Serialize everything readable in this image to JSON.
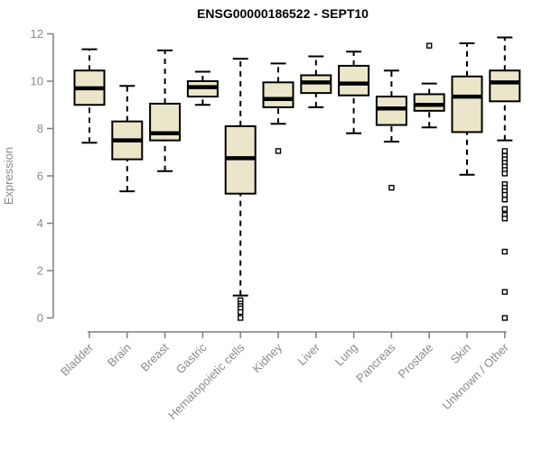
{
  "chart_data": {
    "type": "boxplot",
    "title": "ENSG00000186522 - SEPT10",
    "ylabel": "Expression",
    "ylim": [
      0,
      12
    ],
    "yticks": [
      0,
      2,
      4,
      6,
      8,
      10,
      12
    ],
    "grid": false,
    "legend": "none",
    "x_tick_rotation": -45,
    "categories": [
      "Bladder",
      "Brain",
      "Breast",
      "Gastric",
      "Hematopoietic cells",
      "Kidney",
      "Liver",
      "Lung",
      "Pancreas",
      "Prostate",
      "Skin",
      "Unknown / Other"
    ],
    "series": [
      {
        "name": "Bladder",
        "low": 7.4,
        "q1": 9.0,
        "median": 9.7,
        "q3": 10.45,
        "high": 11.35,
        "outliers": []
      },
      {
        "name": "Brain",
        "low": 5.35,
        "q1": 6.7,
        "median": 7.5,
        "q3": 8.3,
        "high": 9.8,
        "outliers": []
      },
      {
        "name": "Breast",
        "low": 6.2,
        "q1": 7.5,
        "median": 7.8,
        "q3": 9.05,
        "high": 11.3,
        "outliers": []
      },
      {
        "name": "Gastric",
        "low": 9.0,
        "q1": 9.35,
        "median": 9.75,
        "q3": 10.0,
        "high": 10.4,
        "outliers": []
      },
      {
        "name": "Hematopoietic cells",
        "low": 0.95,
        "q1": 5.25,
        "median": 6.75,
        "q3": 8.1,
        "high": 10.95,
        "outliers": [
          0.75,
          0.6,
          0.5,
          0.4,
          0.25,
          0.0
        ]
      },
      {
        "name": "Kidney",
        "low": 8.2,
        "q1": 8.9,
        "median": 9.25,
        "q3": 9.95,
        "high": 10.75,
        "outliers": [
          7.05
        ]
      },
      {
        "name": "Liver",
        "low": 8.9,
        "q1": 9.5,
        "median": 9.95,
        "q3": 10.25,
        "high": 11.05,
        "outliers": []
      },
      {
        "name": "Lung",
        "low": 7.8,
        "q1": 9.4,
        "median": 9.9,
        "q3": 10.65,
        "high": 11.25,
        "outliers": []
      },
      {
        "name": "Pancreas",
        "low": 7.45,
        "q1": 8.15,
        "median": 8.85,
        "q3": 9.35,
        "high": 10.45,
        "outliers": [
          5.5
        ]
      },
      {
        "name": "Prostate",
        "low": 8.05,
        "q1": 8.75,
        "median": 9.0,
        "q3": 9.45,
        "high": 9.9,
        "outliers": [
          11.5
        ]
      },
      {
        "name": "Skin",
        "low": 6.05,
        "q1": 7.85,
        "median": 9.35,
        "q3": 10.2,
        "high": 11.6,
        "outliers": []
      },
      {
        "name": "Unknown / Other",
        "low": 7.5,
        "q1": 9.15,
        "median": 9.95,
        "q3": 10.45,
        "high": 11.85,
        "outliers": [
          7.05,
          6.85,
          6.7,
          6.55,
          6.4,
          6.25,
          6.1,
          5.65,
          5.5,
          5.35,
          5.2,
          5.0,
          4.6,
          4.35,
          4.2,
          2.8,
          1.1,
          0.0
        ]
      }
    ],
    "colors": {
      "box_fill": "#EBE6C9",
      "box_stroke": "#000000",
      "median": "#000000",
      "whisker": "#000000",
      "outlier": "#000000",
      "axis": "#7f7f7f",
      "tick_label": "#8a8a8a",
      "title": "#000000",
      "background": "#ffffff"
    }
  }
}
